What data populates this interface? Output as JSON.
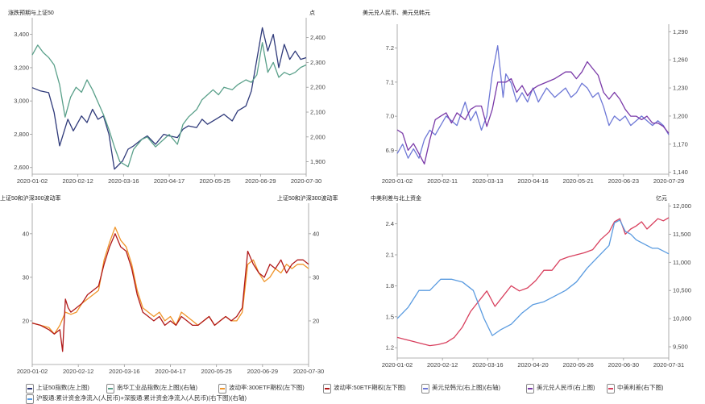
{
  "chart_data": [
    {
      "type": "line",
      "title": "涨跌预期与上证50",
      "y_right_label": "点",
      "x_ticks": [
        "2020-01-02",
        "2020-02-12",
        "2020-03-16",
        "2020-04-17",
        "2020-05-25",
        "2020-06-29",
        "2020-07-30"
      ],
      "left_axis": {
        "ticks": [
          "2,600",
          "2,800",
          "3,000",
          "3,200",
          "3,400"
        ],
        "ylim": [
          2560,
          3500
        ]
      },
      "right_axis": {
        "ticks": [
          "1,900",
          "2,000",
          "2,100",
          "2,200",
          "2,300",
          "2,400"
        ],
        "ylim": [
          1850,
          2480
        ]
      },
      "series": [
        {
          "name": "上证50指数(左上图)",
          "axis": "left",
          "color": "#2f3a7a",
          "x": [
            0,
            3,
            6,
            8,
            10,
            13,
            15,
            18,
            20,
            22,
            24,
            26,
            28,
            30,
            33,
            35,
            37,
            40,
            42,
            45,
            48,
            50,
            53,
            55,
            57,
            60,
            62,
            64,
            67,
            70,
            73,
            75,
            78,
            80,
            82,
            84,
            86,
            88,
            90,
            92,
            94,
            96,
            98,
            100
          ],
          "values": [
            3080,
            3060,
            3050,
            2930,
            2730,
            2890,
            2820,
            2910,
            2870,
            2950,
            2890,
            2910,
            2800,
            2590,
            2640,
            2710,
            2730,
            2770,
            2790,
            2740,
            2800,
            2790,
            2780,
            2830,
            2850,
            2840,
            2890,
            2860,
            2890,
            2920,
            2880,
            2940,
            2970,
            3060,
            3250,
            3440,
            3300,
            3400,
            3200,
            3340,
            3250,
            3300,
            3250,
            3260
          ]
        },
        {
          "name": "南华工业品指数(左上图)(右轴)",
          "axis": "right",
          "color": "#5aa08a",
          "x": [
            0,
            2,
            4,
            6,
            8,
            10,
            12,
            14,
            16,
            18,
            20,
            22,
            24,
            26,
            28,
            30,
            32,
            35,
            37,
            40,
            42,
            45,
            48,
            50,
            53,
            55,
            57,
            60,
            62,
            64,
            66,
            68,
            70,
            73,
            75,
            78,
            80,
            82,
            84,
            86,
            88,
            90,
            92,
            94,
            96,
            98,
            100
          ],
          "values": [
            2330,
            2370,
            2340,
            2320,
            2290,
            2210,
            2080,
            2160,
            2200,
            2180,
            2230,
            2190,
            2140,
            2090,
            2030,
            1960,
            1900,
            1880,
            1950,
            1990,
            2000,
            1960,
            1990,
            2010,
            1970,
            2050,
            2080,
            2110,
            2150,
            2170,
            2190,
            2170,
            2200,
            2190,
            2210,
            2230,
            2220,
            2250,
            2380,
            2260,
            2300,
            2240,
            2260,
            2250,
            2260,
            2280,
            2290
          ]
        }
      ]
    },
    {
      "type": "line",
      "title": "美元兑人民币、美元兑韩元",
      "x_ticks": [
        "2020-01-02",
        "2020-02-11",
        "2020-03-13",
        "2020-04-16",
        "2020-05-21",
        "2020-06-23",
        "2020-07-29"
      ],
      "left_axis": {
        "ticks": [
          "6.9",
          "7.0",
          "7.1",
          "7.2"
        ],
        "ylim": [
          6.83,
          7.27
        ]
      },
      "right_axis": {
        "ticks": [
          "1,140",
          "1,170",
          "1,200",
          "1,230",
          "1,260",
          "1,290"
        ],
        "ylim": [
          1138,
          1298
        ]
      },
      "series": [
        {
          "name": "美元兑韩元(右上图)(右轴)",
          "axis": "right",
          "color": "#6e78d6",
          "x": [
            0,
            2,
            4,
            6,
            8,
            10,
            12,
            14,
            16,
            18,
            20,
            22,
            25,
            27,
            29,
            31,
            33,
            35,
            37,
            39,
            40,
            42,
            44,
            46,
            48,
            50,
            52,
            55,
            58,
            60,
            62,
            64,
            66,
            68,
            70,
            72,
            74,
            76,
            78,
            80,
            82,
            84,
            86,
            88,
            90,
            92,
            94,
            96,
            98,
            100
          ],
          "values": [
            1160,
            1170,
            1155,
            1165,
            1155,
            1175,
            1185,
            1180,
            1190,
            1200,
            1195,
            1190,
            1215,
            1195,
            1205,
            1185,
            1200,
            1245,
            1275,
            1220,
            1245,
            1235,
            1215,
            1225,
            1215,
            1230,
            1215,
            1230,
            1220,
            1225,
            1230,
            1220,
            1225,
            1235,
            1230,
            1220,
            1225,
            1210,
            1190,
            1200,
            1195,
            1200,
            1190,
            1195,
            1200,
            1195,
            1190,
            1195,
            1190,
            1180
          ]
        },
        {
          "name": "美元兑人民币(右上图)",
          "axis": "left",
          "color": "#7a3aa8",
          "x": [
            0,
            2,
            4,
            6,
            8,
            10,
            12,
            14,
            16,
            18,
            20,
            22,
            25,
            27,
            29,
            31,
            33,
            35,
            37,
            40,
            42,
            44,
            46,
            48,
            50,
            52,
            55,
            58,
            60,
            62,
            64,
            66,
            68,
            70,
            72,
            74,
            76,
            78,
            80,
            82,
            84,
            86,
            88,
            90,
            92,
            94,
            96,
            98,
            100
          ],
          "values": [
            6.96,
            6.95,
            6.9,
            6.92,
            6.89,
            6.86,
            6.93,
            6.99,
            7.0,
            7.01,
            6.98,
            7.01,
            6.99,
            7.02,
            7.03,
            7.03,
            6.97,
            7.02,
            7.1,
            7.1,
            7.11,
            7.07,
            7.09,
            7.06,
            7.08,
            7.09,
            7.1,
            7.11,
            7.12,
            7.13,
            7.13,
            7.11,
            7.13,
            7.16,
            7.14,
            7.12,
            7.07,
            7.05,
            7.07,
            7.05,
            7.02,
            7.0,
            7.0,
            6.99,
            7.0,
            6.98,
            6.98,
            6.97,
            6.95
          ]
        }
      ]
    },
    {
      "type": "line",
      "title_left": "上证50和沪深300波动率",
      "title_right": "上证50和沪深300波动率",
      "x_ticks": [
        "2020-01-02",
        "2020-02-12",
        "2020-03-16",
        "2020-04-17",
        "2020-05-25",
        "2020-06-29",
        "2020-07-30"
      ],
      "left_axis": {
        "ticks": [
          "20",
          "30",
          "40"
        ],
        "ylim": [
          10,
          47
        ]
      },
      "right_axis": {
        "ticks": [
          "20",
          "30",
          "40"
        ],
        "ylim": [
          10,
          47
        ]
      },
      "series": [
        {
          "name": "波动率:300ETF期权(左下图)",
          "axis": "left",
          "color": "#f0952a",
          "x": [
            0,
            3,
            6,
            8,
            10,
            12,
            14,
            16,
            18,
            20,
            22,
            24,
            26,
            28,
            30,
            32,
            34,
            36,
            38,
            40,
            42,
            44,
            46,
            48,
            50,
            52,
            54,
            56,
            58,
            60,
            62,
            64,
            66,
            68,
            70,
            72,
            74,
            76,
            78,
            80,
            82,
            84,
            86,
            88,
            90,
            92,
            94,
            96,
            98,
            100
          ],
          "values": [
            19.5,
            19,
            18.5,
            17,
            19,
            22,
            21.5,
            22,
            24,
            25,
            26,
            27,
            34,
            38,
            41.5,
            38.5,
            37,
            33,
            27,
            23,
            22,
            21,
            22,
            20,
            21,
            19,
            22,
            21,
            20,
            19,
            20,
            21,
            19,
            20,
            21,
            20,
            20,
            22,
            33,
            34,
            31,
            29,
            30,
            32,
            31,
            33,
            32,
            33,
            33,
            32
          ]
        },
        {
          "name": "波动率:50ETF期权(左下图)",
          "axis": "left",
          "color": "#b01818",
          "x": [
            0,
            3,
            6,
            8,
            10,
            11,
            12,
            13,
            14,
            16,
            18,
            20,
            22,
            24,
            26,
            28,
            30,
            32,
            34,
            36,
            38,
            40,
            42,
            44,
            46,
            48,
            50,
            52,
            54,
            56,
            58,
            60,
            62,
            64,
            66,
            68,
            70,
            72,
            74,
            76,
            78,
            80,
            82,
            84,
            86,
            88,
            90,
            92,
            94,
            96,
            98,
            100
          ],
          "values": [
            19.5,
            19,
            18,
            17,
            18,
            13,
            25,
            23,
            22,
            23,
            24,
            26,
            27,
            28,
            33,
            37,
            40,
            37,
            36,
            32,
            26,
            22,
            21,
            20,
            21,
            19,
            20,
            19,
            21,
            20,
            19,
            19,
            20,
            21,
            19,
            20,
            21,
            20,
            21,
            23,
            36,
            33,
            31,
            30,
            33,
            32,
            34,
            31,
            33,
            34,
            34,
            33
          ]
        }
      ]
    },
    {
      "type": "line",
      "title": "中美利差与北上资金",
      "y_right_label": "亿元",
      "x_ticks": [
        "2020-01-02",
        "2020-02-12",
        "2020-03-16",
        "2020-04-20",
        "2020-05-26",
        "2020-06-30",
        "2020-07-31"
      ],
      "left_axis": {
        "ticks": [
          "1.2",
          "1.5",
          "1.8",
          "2.1",
          "2.4"
        ],
        "ylim": [
          1.1,
          2.6
        ]
      },
      "right_axis": {
        "ticks": [
          "9,500",
          "10,000",
          "10,500",
          "11,000",
          "11,500",
          "12,000"
        ],
        "ylim": [
          9300,
          12050
        ]
      },
      "series": [
        {
          "name": "中美利差(右下图)",
          "axis": "left",
          "color": "#d8405e",
          "x": [
            0,
            3,
            6,
            9,
            12,
            15,
            18,
            21,
            24,
            27,
            30,
            33,
            36,
            39,
            42,
            45,
            48,
            51,
            54,
            57,
            60,
            63,
            66,
            69,
            72,
            75,
            78,
            80,
            82,
            84,
            86,
            88,
            90,
            92,
            94,
            96,
            98,
            100
          ],
          "values": [
            1.3,
            1.28,
            1.26,
            1.24,
            1.22,
            1.23,
            1.25,
            1.3,
            1.4,
            1.55,
            1.65,
            1.75,
            1.6,
            1.7,
            1.8,
            1.75,
            1.78,
            1.85,
            1.95,
            1.95,
            2.05,
            2.08,
            2.1,
            2.12,
            2.15,
            2.25,
            2.32,
            2.42,
            2.45,
            2.3,
            2.35,
            2.38,
            2.42,
            2.35,
            2.4,
            2.45,
            2.43,
            2.46
          ]
        },
        {
          "name": "沪股通:累计资金净流入(人民币)+深股通:累计资金净流入(人民币)(右下图)(右轴)",
          "axis": "right",
          "color": "#5a9be0",
          "x": [
            0,
            4,
            8,
            12,
            16,
            20,
            24,
            28,
            32,
            35,
            38,
            42,
            46,
            50,
            54,
            58,
            62,
            66,
            70,
            74,
            78,
            80,
            82,
            84,
            86,
            88,
            90,
            92,
            94,
            96,
            98,
            100
          ],
          "values": [
            10000,
            10200,
            10500,
            10500,
            10700,
            10700,
            10650,
            10500,
            10000,
            9700,
            9800,
            9900,
            10100,
            10250,
            10300,
            10400,
            10500,
            10650,
            10900,
            11100,
            11300,
            11700,
            11750,
            11550,
            11500,
            11400,
            11350,
            11300,
            11250,
            11250,
            11200,
            11150
          ]
        }
      ]
    }
  ],
  "legend": {
    "row1": [
      {
        "label": "上证50指数(左上图)",
        "color": "#2f3a7a"
      },
      {
        "label": "南华工业品指数(左上图)(右轴)",
        "color": "#5aa08a"
      },
      {
        "label": "波动率:300ETF期权(左下图)",
        "color": "#f0952a"
      },
      {
        "label": "波动率:50ETF期权(左下图)",
        "color": "#b01818"
      },
      {
        "label": "美元兑韩元(右上图)(右轴)",
        "color": "#6e78d6"
      },
      {
        "label": "美元兑人民币(右上图)",
        "color": "#7a3aa8"
      },
      {
        "label": "中美利差(右下图)",
        "color": "#d8405e"
      }
    ],
    "row2": [
      {
        "label": "沪股通:累计资金净流入(人民币)+深股通:累计资金净流入(人民币)(右下图)(右轴)",
        "color": "#5a9be0"
      }
    ]
  }
}
